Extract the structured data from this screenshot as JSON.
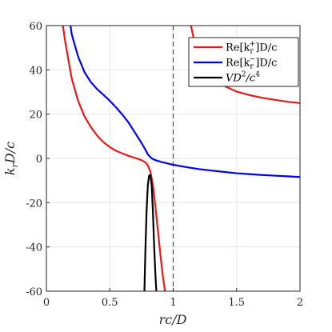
{
  "chart_data": {
    "type": "line",
    "title": "",
    "xlabel": "rc/D",
    "ylabel": "k_r D/c",
    "xlim": [
      0,
      2
    ],
    "ylim": [
      -60,
      60
    ],
    "x_ticks": [
      "0",
      "0.5",
      "1",
      "1.5",
      "2"
    ],
    "x_tick_values": [
      0,
      0.5,
      1,
      1.5,
      2
    ],
    "y_ticks": [
      "60",
      "40",
      "20",
      "0",
      "-20",
      "-40",
      "-60"
    ],
    "y_tick_values": [
      60,
      40,
      20,
      0,
      -20,
      -40,
      -60
    ],
    "grid": true,
    "legend_position": "top-right",
    "vertical_reference_line": {
      "x": 1,
      "style": "dashed",
      "color": "#555555"
    },
    "series": [
      {
        "name": "Re[k_r^+]D/c",
        "legend_label": {
          "base": "Re[k",
          "sub": "r",
          "sup": "+",
          "tail": "]D/c"
        },
        "color": "#e41a1c",
        "segments": [
          {
            "x": [
              0.13,
              0.15,
              0.2,
              0.25,
              0.3,
              0.35,
              0.4,
              0.45,
              0.5,
              0.55,
              0.6,
              0.65,
              0.7,
              0.75,
              0.78,
              0.8,
              0.82,
              0.84,
              0.86,
              0.88,
              0.9,
              0.92,
              0.935
            ],
            "y": [
              60,
              52,
              36,
              26,
              19,
              14.2,
              10.3,
              7.3,
              5.1,
              3.4,
              2.2,
              1.1,
              0.2,
              -0.8,
              -1.8,
              -3.2,
              -6,
              -12,
              -22,
              -33,
              -44,
              -54,
              -60
            ]
          },
          {
            "x": [
              1.14,
              1.2,
              1.3,
              1.4,
              1.5,
              1.6,
              1.7,
              1.8,
              1.9,
              2.0
            ],
            "y": [
              60,
              44,
              36.5,
              32.8,
              30.2,
              28.6,
              27.4,
              26.5,
              25.6,
              25
            ]
          }
        ]
      },
      {
        "name": "Re[k_r^-]D/c",
        "legend_label": {
          "base": "Re[k",
          "sub": "r",
          "sup": "−",
          "tail": "]D/c"
        },
        "color": "#0000ee",
        "segments": [
          {
            "x": [
              0.19,
              0.2,
              0.25,
              0.3,
              0.35,
              0.4,
              0.45,
              0.5,
              0.55,
              0.6,
              0.65,
              0.7,
              0.75,
              0.78,
              0.8,
              0.83,
              0.86,
              0.9,
              0.95,
              1.0,
              1.1,
              1.2,
              1.3,
              1.4,
              1.5,
              1.6,
              1.7,
              1.8,
              1.9,
              2.0
            ],
            "y": [
              60,
              56,
              46,
              39,
              34.5,
              31.3,
              28.7,
              26,
              23,
              19.7,
              16,
              11.5,
              7,
              4,
              1.8,
              0,
              -0.8,
              -1.5,
              -2.2,
              -2.9,
              -3.9,
              -4.8,
              -5.5,
              -6.1,
              -6.7,
              -7.1,
              -7.5,
              -7.8,
              -8.1,
              -8.4
            ]
          }
        ]
      },
      {
        "name": "VD^2/c^4",
        "legend_label": {
          "base": "VD",
          "sup": "2",
          "tail": "/c",
          "sup2": "4"
        },
        "color": "#000000",
        "segments": [
          {
            "x": [
              0.773,
              0.78,
              0.79,
              0.8,
              0.81,
              0.817,
              0.82,
              0.83,
              0.84,
              0.85,
              0.86,
              0.867
            ],
            "y": [
              -60,
              -43,
              -24,
              -12,
              -7.8,
              -7.5,
              -7.7,
              -12,
              -24,
              -40,
              -53,
              -60
            ]
          }
        ]
      }
    ]
  }
}
